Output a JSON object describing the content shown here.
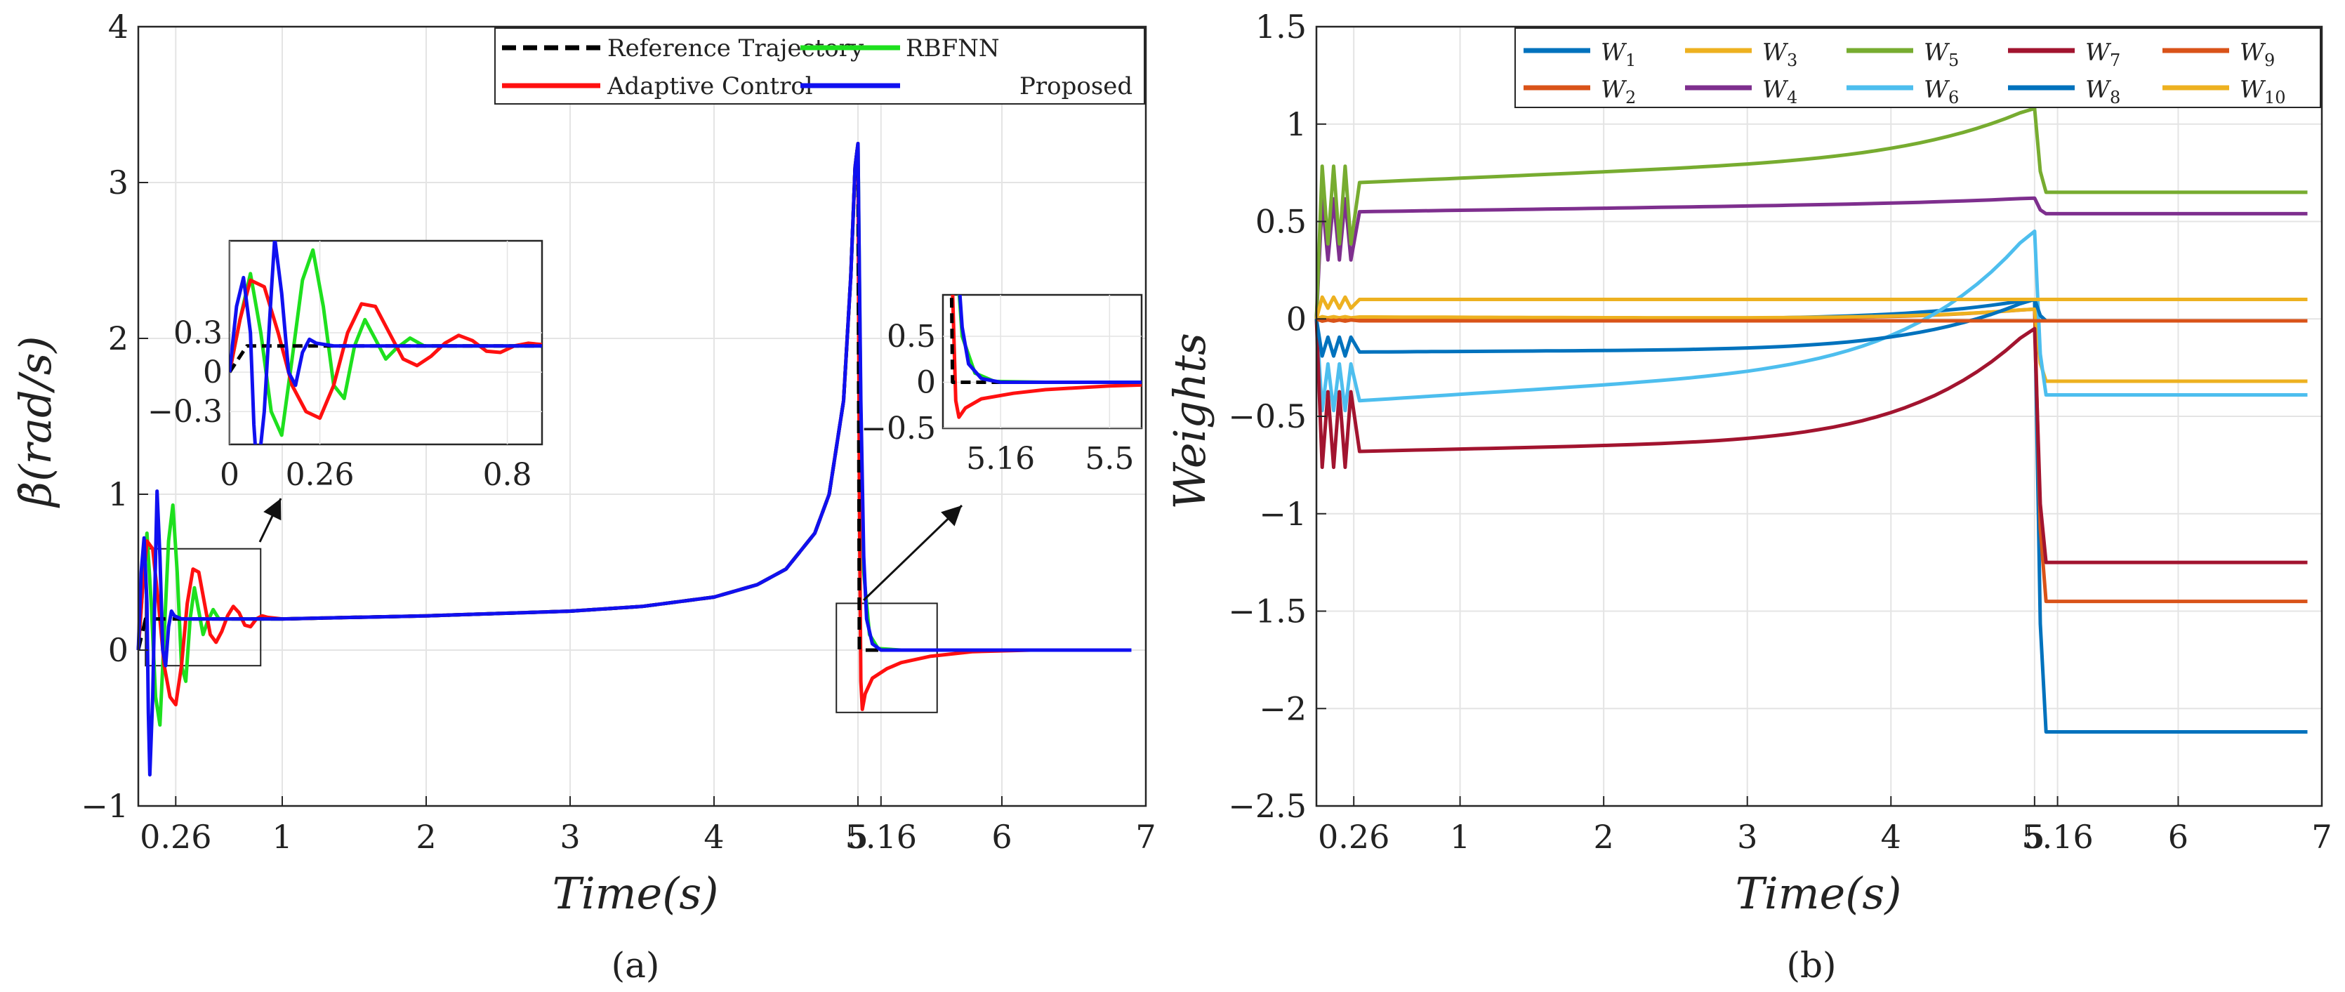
{
  "chart_data": [
    {
      "id": "a",
      "type": "line",
      "caption": "(a)",
      "xlabel": "Time(s)",
      "ylabel": "β̇(rad/s)",
      "xlim": [
        0,
        7
      ],
      "ylim": [
        -1,
        4
      ],
      "xticks": [
        0.26,
        1,
        2,
        3,
        4,
        5,
        5.16,
        6,
        7
      ],
      "xtick_labels": [
        "0.26",
        "1",
        "2",
        "3",
        "4",
        "5",
        "5.16",
        "6",
        "7"
      ],
      "yticks": [
        -1,
        0,
        1,
        2,
        3,
        4
      ],
      "ytick_labels": [
        "−1",
        "0",
        "1",
        "2",
        "3",
        "4"
      ],
      "grid": true,
      "legend_position": "top-right",
      "series": [
        {
          "name": "Reference Trajectory",
          "color": "#000000",
          "dash": "dashed",
          "points": [
            [
              0,
              0
            ],
            [
              0.05,
              0.2
            ],
            [
              0.3,
              0.2
            ],
            [
              1,
              0.2
            ],
            [
              2,
              0.22
            ],
            [
              3,
              0.25
            ],
            [
              3.5,
              0.28
            ],
            [
              4,
              0.34
            ],
            [
              4.3,
              0.42
            ],
            [
              4.5,
              0.52
            ],
            [
              4.7,
              0.75
            ],
            [
              4.8,
              1.0
            ],
            [
              4.9,
              1.6
            ],
            [
              4.95,
              2.4
            ],
            [
              4.98,
              3.1
            ],
            [
              5.0,
              3.25
            ],
            [
              5.01,
              0.0
            ],
            [
              5.5,
              0
            ],
            [
              6,
              0
            ],
            [
              6.9,
              0
            ]
          ]
        },
        {
          "name": "RBFNN",
          "color": "#1ee01e",
          "dash": "solid",
          "points": [
            [
              0,
              0
            ],
            [
              0.03,
              0.4
            ],
            [
              0.06,
              0.75
            ],
            [
              0.09,
              0.3
            ],
            [
              0.12,
              -0.3
            ],
            [
              0.15,
              -0.48
            ],
            [
              0.18,
              0.1
            ],
            [
              0.21,
              0.7
            ],
            [
              0.24,
              0.93
            ],
            [
              0.27,
              0.5
            ],
            [
              0.3,
              -0.1
            ],
            [
              0.33,
              -0.2
            ],
            [
              0.36,
              0.2
            ],
            [
              0.39,
              0.4
            ],
            [
              0.42,
              0.25
            ],
            [
              0.45,
              0.1
            ],
            [
              0.48,
              0.18
            ],
            [
              0.52,
              0.26
            ],
            [
              0.56,
              0.2
            ],
            [
              0.6,
              0.2
            ],
            [
              1,
              0.2
            ],
            [
              2,
              0.22
            ],
            [
              3,
              0.25
            ],
            [
              3.5,
              0.28
            ],
            [
              4,
              0.34
            ],
            [
              4.3,
              0.42
            ],
            [
              4.5,
              0.52
            ],
            [
              4.7,
              0.75
            ],
            [
              4.8,
              1.0
            ],
            [
              4.9,
              1.6
            ],
            [
              4.95,
              2.4
            ],
            [
              4.98,
              3.1
            ],
            [
              5.0,
              3.25
            ],
            [
              5.02,
              1.5
            ],
            [
              5.04,
              0.5
            ],
            [
              5.08,
              0.1
            ],
            [
              5.14,
              0.01
            ],
            [
              5.3,
              0
            ],
            [
              6,
              0
            ],
            [
              6.9,
              0
            ]
          ]
        },
        {
          "name": "Adaptive Control",
          "color": "#ff1010",
          "dash": "solid",
          "points": [
            [
              0,
              0
            ],
            [
              0.03,
              0.4
            ],
            [
              0.06,
              0.7
            ],
            [
              0.1,
              0.65
            ],
            [
              0.14,
              0.3
            ],
            [
              0.18,
              -0.1
            ],
            [
              0.22,
              -0.3
            ],
            [
              0.26,
              -0.35
            ],
            [
              0.3,
              -0.1
            ],
            [
              0.34,
              0.3
            ],
            [
              0.38,
              0.52
            ],
            [
              0.42,
              0.5
            ],
            [
              0.46,
              0.3
            ],
            [
              0.5,
              0.1
            ],
            [
              0.54,
              0.05
            ],
            [
              0.58,
              0.12
            ],
            [
              0.62,
              0.22
            ],
            [
              0.66,
              0.28
            ],
            [
              0.7,
              0.24
            ],
            [
              0.74,
              0.16
            ],
            [
              0.78,
              0.15
            ],
            [
              0.82,
              0.2
            ],
            [
              0.86,
              0.22
            ],
            [
              0.9,
              0.21
            ],
            [
              1,
              0.2
            ],
            [
              2,
              0.22
            ],
            [
              3,
              0.25
            ],
            [
              3.5,
              0.28
            ],
            [
              4,
              0.34
            ],
            [
              4.3,
              0.42
            ],
            [
              4.5,
              0.52
            ],
            [
              4.7,
              0.75
            ],
            [
              4.8,
              1.0
            ],
            [
              4.9,
              1.6
            ],
            [
              4.95,
              2.4
            ],
            [
              4.98,
              3.1
            ],
            [
              5.0,
              3.25
            ],
            [
              5.01,
              1.0
            ],
            [
              5.02,
              -0.2
            ],
            [
              5.03,
              -0.38
            ],
            [
              5.05,
              -0.28
            ],
            [
              5.1,
              -0.18
            ],
            [
              5.2,
              -0.12
            ],
            [
              5.3,
              -0.08
            ],
            [
              5.5,
              -0.04
            ],
            [
              5.8,
              -0.01
            ],
            [
              6.2,
              0
            ],
            [
              6.9,
              0
            ]
          ]
        },
        {
          "name": "Proposed",
          "color": "#1010f0",
          "dash": "solid",
          "points": [
            [
              0,
              0
            ],
            [
              0.02,
              0.5
            ],
            [
              0.04,
              0.72
            ],
            [
              0.06,
              0.3
            ],
            [
              0.07,
              -0.4
            ],
            [
              0.08,
              -0.8
            ],
            [
              0.1,
              -0.3
            ],
            [
              0.12,
              0.6
            ],
            [
              0.13,
              1.02
            ],
            [
              0.15,
              0.6
            ],
            [
              0.17,
              0.0
            ],
            [
              0.19,
              -0.1
            ],
            [
              0.21,
              0.15
            ],
            [
              0.23,
              0.25
            ],
            [
              0.25,
              0.22
            ],
            [
              0.3,
              0.2
            ],
            [
              1,
              0.2
            ],
            [
              2,
              0.22
            ],
            [
              3,
              0.25
            ],
            [
              3.5,
              0.28
            ],
            [
              4,
              0.34
            ],
            [
              4.3,
              0.42
            ],
            [
              4.5,
              0.52
            ],
            [
              4.7,
              0.75
            ],
            [
              4.8,
              1.0
            ],
            [
              4.9,
              1.6
            ],
            [
              4.95,
              2.4
            ],
            [
              4.98,
              3.1
            ],
            [
              5.0,
              3.25
            ],
            [
              5.02,
              1.6
            ],
            [
              5.04,
              0.6
            ],
            [
              5.06,
              0.2
            ],
            [
              5.1,
              0.04
            ],
            [
              5.16,
              0.0
            ],
            [
              5.5,
              0
            ],
            [
              6,
              0
            ],
            [
              6.9,
              0
            ]
          ]
        }
      ],
      "insets": [
        {
          "xlim": [
            0,
            0.9
          ],
          "ylim": [
            -0.55,
            1.0
          ],
          "xticks": [
            0,
            0.26,
            0.8
          ],
          "xtick_labels": [
            "0",
            "0.26",
            "0.8"
          ],
          "yticks": [
            -0.3,
            0,
            0.3
          ],
          "ytick_labels": [
            "−0.3",
            "0",
            "0.3"
          ],
          "zoom_box_x": [
            0.05,
            0.85
          ],
          "zoom_box_y": [
            -0.1,
            0.65
          ]
        },
        {
          "xlim": [
            4.98,
            5.6
          ],
          "ylim": [
            -0.5,
            0.95
          ],
          "xticks": [
            5.16,
            5.5
          ],
          "xtick_labels": [
            "5.16",
            "5.5"
          ],
          "yticks": [
            -0.5,
            0,
            0.5
          ],
          "ytick_labels": [
            "−0.5",
            "0",
            "0.5"
          ],
          "zoom_box_x": [
            4.85,
            5.55
          ],
          "zoom_box_y": [
            -0.4,
            0.3
          ]
        }
      ]
    },
    {
      "id": "b",
      "type": "line",
      "caption": "(b)",
      "xlabel": "Time(s)",
      "ylabel": "Weights",
      "xlim": [
        0,
        7
      ],
      "ylim": [
        -2.5,
        1.5
      ],
      "xticks": [
        0.26,
        1,
        2,
        3,
        4,
        5,
        5.16,
        6,
        7
      ],
      "xtick_labels": [
        "0.26",
        "1",
        "2",
        "3",
        "4",
        "5",
        "5.16",
        "6",
        "7"
      ],
      "yticks": [
        -2.5,
        -2,
        -1.5,
        -1,
        -0.5,
        0,
        0.5,
        1,
        1.5
      ],
      "ytick_labels": [
        "−2.5",
        "−2",
        "−1.5",
        "−1",
        "−0.5",
        "0",
        "0.5",
        "1",
        "1.5"
      ],
      "grid": true,
      "legend_position": "top-right",
      "series": [
        {
          "name": "W",
          "sub": "1",
          "color": "#0072bd",
          "early": 0.0,
          "pre": 0.0,
          "peak": 0.1,
          "final": -2.12
        },
        {
          "name": "W",
          "sub": "2",
          "color": "#d95319",
          "early": 0.0,
          "pre": 0.0,
          "peak": 0.05,
          "final": -1.45
        },
        {
          "name": "W",
          "sub": "3",
          "color": "#edb120",
          "early": 0.01,
          "pre": 0.0,
          "peak": 0.05,
          "final": -0.32
        },
        {
          "name": "W",
          "sub": "4",
          "color": "#7e2f8e",
          "early": 0.55,
          "pre": 0.6,
          "peak": 0.62,
          "final": 0.54
        },
        {
          "name": "W",
          "sub": "5",
          "color": "#77ac30",
          "early": 0.7,
          "pre": 0.85,
          "peak": 1.08,
          "final": 0.65
        },
        {
          "name": "W",
          "sub": "6",
          "color": "#4dbeee",
          "early": -0.42,
          "pre": -0.2,
          "peak": 0.45,
          "final": -0.39
        },
        {
          "name": "W",
          "sub": "7",
          "color": "#a2142f",
          "early": -0.68,
          "pre": -0.6,
          "peak": -0.05,
          "final": -1.25
        },
        {
          "name": "W",
          "sub": "8",
          "color": "#0072bd",
          "early": -0.17,
          "pre": -0.15,
          "peak": 0.1,
          "final": -0.01
        },
        {
          "name": "W",
          "sub": "9",
          "color": "#d95319",
          "early": -0.01,
          "pre": -0.01,
          "peak": -0.01,
          "final": -0.01
        },
        {
          "name": "W",
          "sub": "10",
          "color": "#edb120",
          "early": 0.1,
          "pre": 0.1,
          "peak": 0.1,
          "final": 0.1
        }
      ]
    }
  ]
}
